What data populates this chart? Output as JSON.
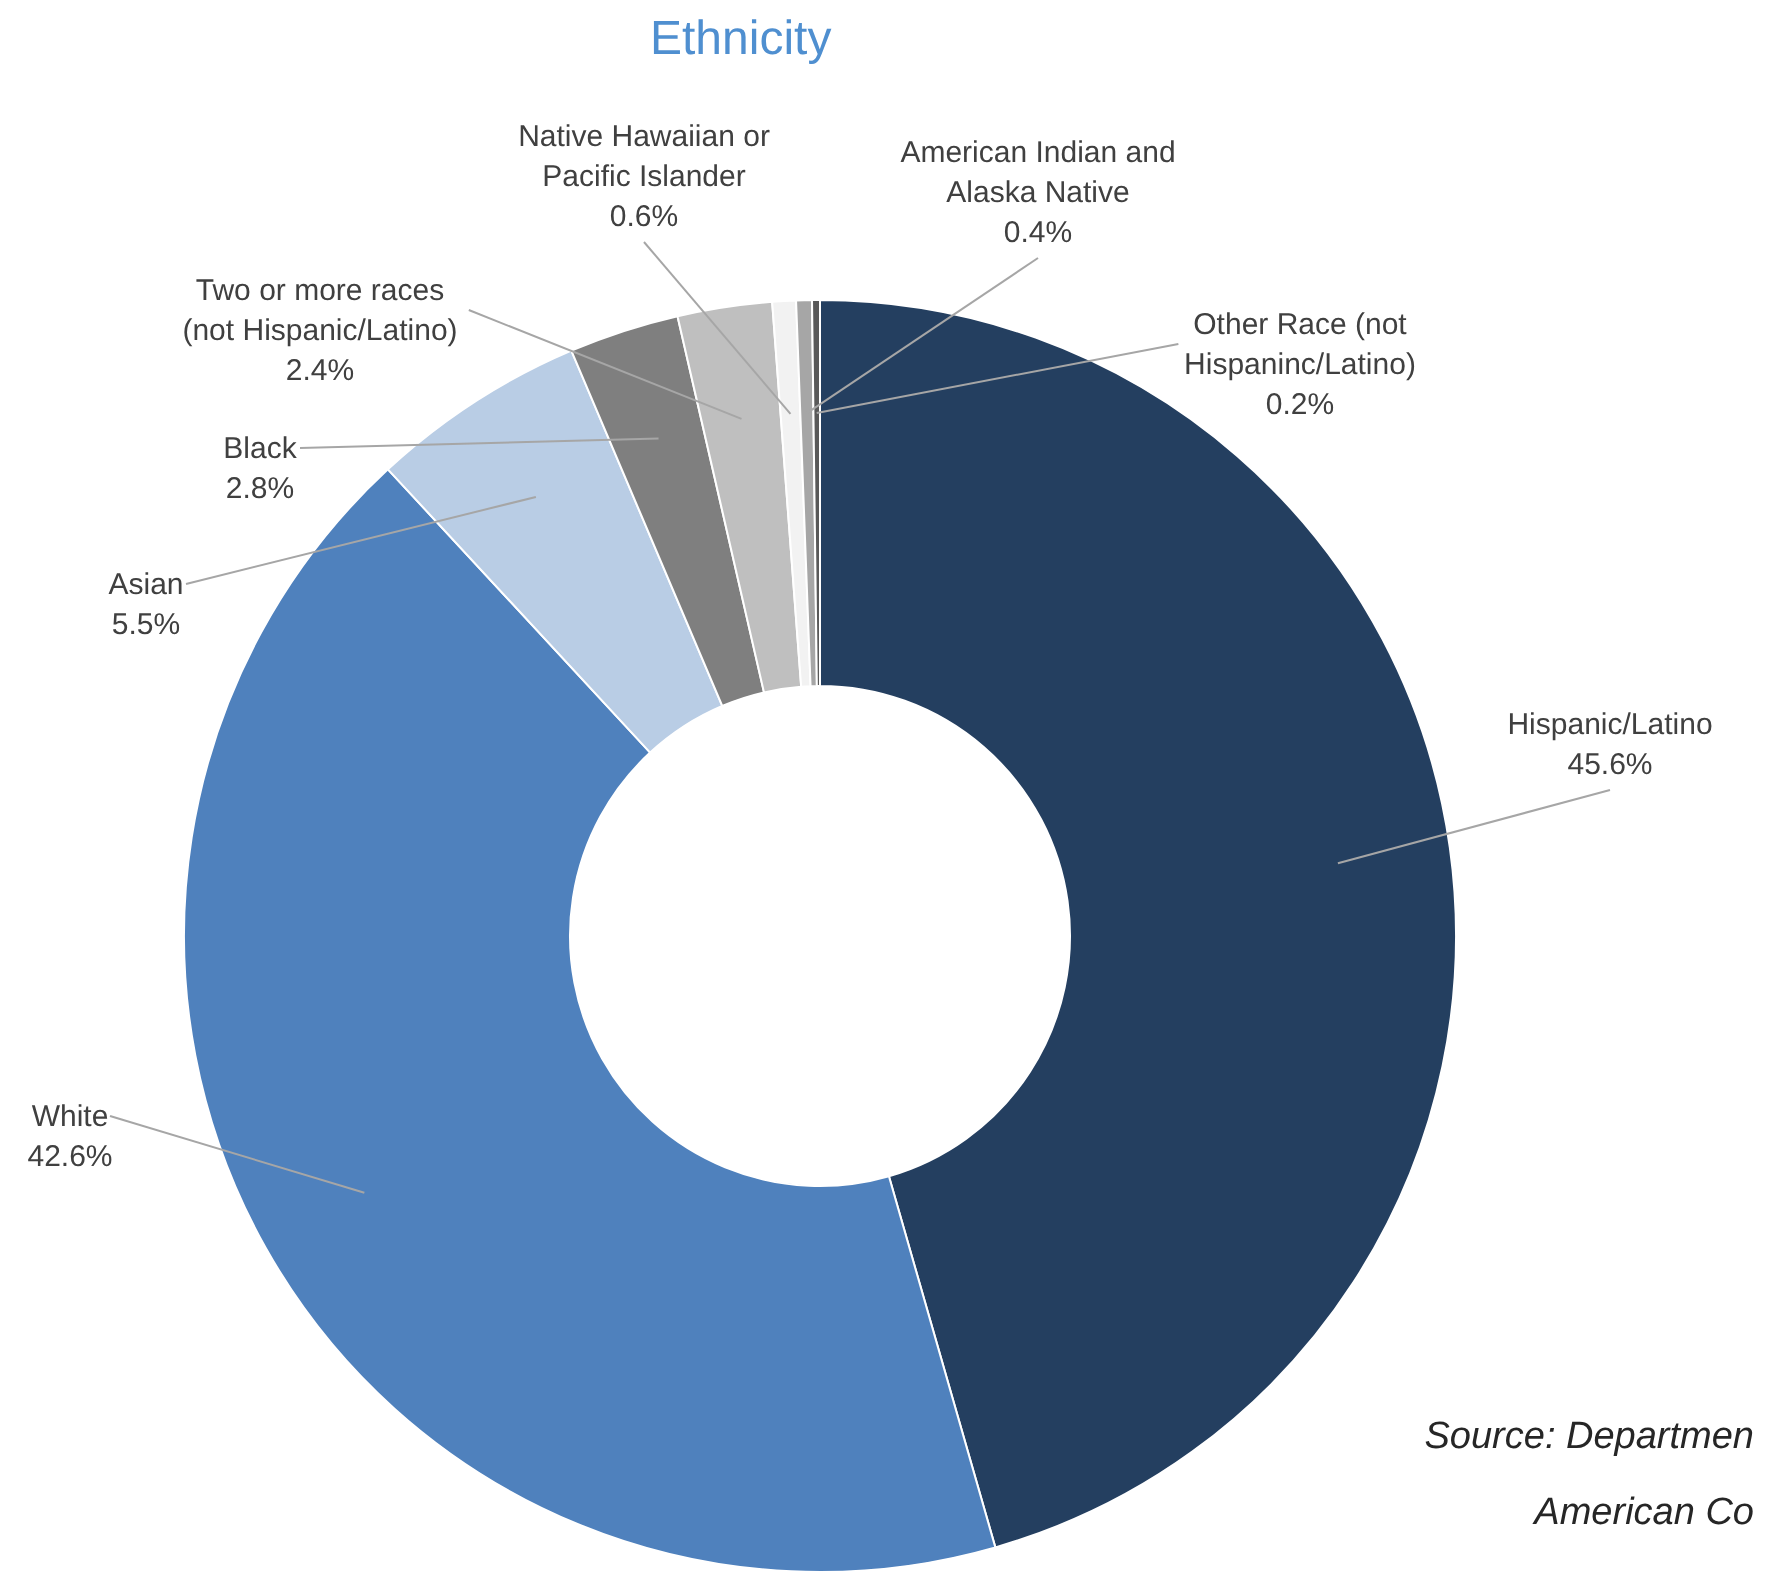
{
  "chart_data": {
    "type": "donut",
    "title": "Ethnicity",
    "categories": [
      "Hispanic/Latino",
      "White",
      "Asian",
      "Black",
      "Two or more races (not Hispanic/Latino)",
      "Native Hawaiian or Pacific Islander",
      "American Indian and Alaska Native",
      "Other Race (not Hispaninc/Latino)"
    ],
    "values": [
      45.6,
      42.6,
      5.5,
      2.8,
      2.4,
      0.6,
      0.4,
      0.2
    ],
    "value_labels": [
      "45.6%",
      "42.6%",
      "5.5%",
      "2.8%",
      "2.4%",
      "0.6%",
      "0.4%",
      "0.2%"
    ],
    "colors": [
      "#243f60",
      "#4f81bd",
      "#b9cde5",
      "#7f7f7f",
      "#bfbfbf",
      "#f2f2f2",
      "#a6a6a6",
      "#595959"
    ],
    "annotations": [
      "Source: Departmen",
      "American Co"
    ]
  }
}
